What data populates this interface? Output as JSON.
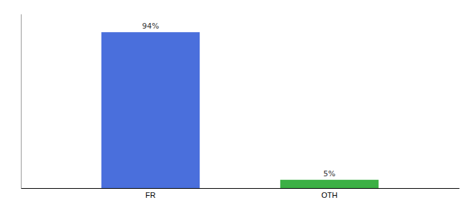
{
  "chart_data": {
    "type": "bar",
    "categories": [
      "FR",
      "OTH"
    ],
    "values": [
      94,
      5
    ],
    "value_labels": [
      "94%",
      "5%"
    ],
    "colors": [
      "#4a6fdc",
      "#3cb045"
    ],
    "ylim": [
      0,
      105
    ],
    "data_labels": true,
    "tick_labels": "x"
  }
}
